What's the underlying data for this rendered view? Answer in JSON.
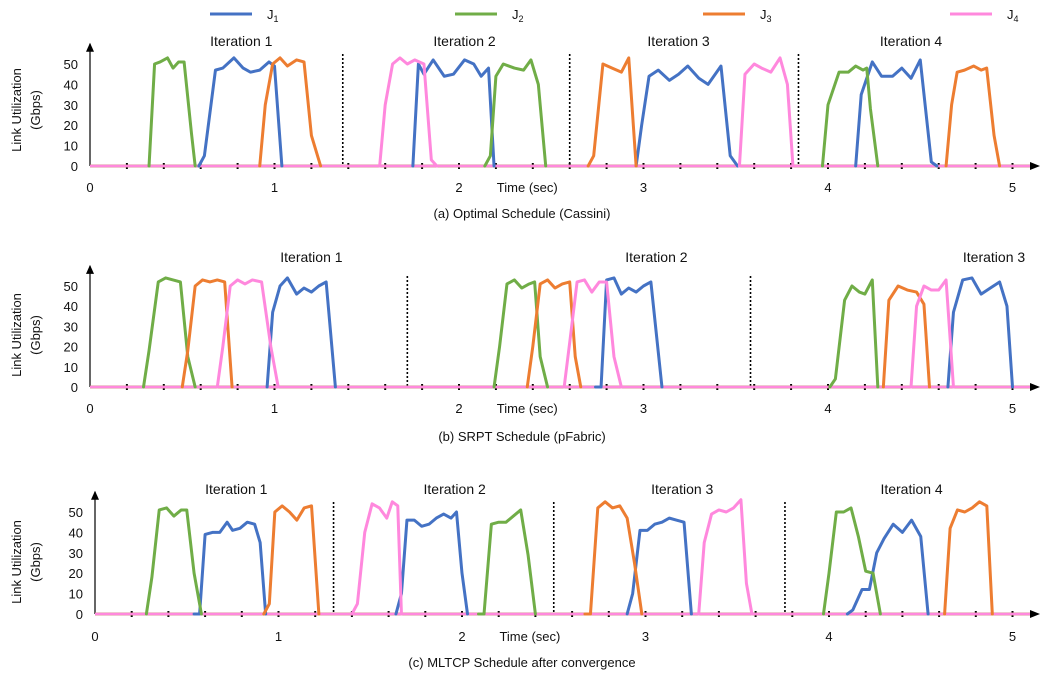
{
  "legend": [
    {
      "label": "J",
      "sub": "1",
      "color": "#4472C4"
    },
    {
      "label": "J",
      "sub": "2",
      "color": "#70AD47"
    },
    {
      "label": "J",
      "sub": "3",
      "color": "#ED7D31"
    },
    {
      "label": "J",
      "sub": "4",
      "color": "#FF88DD"
    }
  ],
  "chart_data": [
    {
      "type": "line",
      "caption": "(a) Optimal Schedule (Cassini)",
      "ylabel_line1": "Link Utilization",
      "ylabel_line2": "(Gbps)",
      "xlabel": "Time (sec)",
      "xlim": [
        0,
        5.2
      ],
      "ylim": [
        0,
        55
      ],
      "xticks": [
        0,
        1,
        2,
        3,
        4,
        5
      ],
      "yticks": [
        0,
        10,
        20,
        30,
        40,
        50
      ],
      "separators": [
        1.37,
        2.6,
        3.84
      ],
      "iteration_labels": [
        {
          "text": "Iteration 1",
          "x": 0.82
        },
        {
          "text": "Iteration 2",
          "x": 2.03
        },
        {
          "text": "Iteration 3",
          "x": 3.19
        },
        {
          "text": "Iteration 4",
          "x": 4.45
        }
      ],
      "series": [
        {
          "name": "J1",
          "bursts": [
            {
              "x": [
                0.62,
                0.68,
                0.72,
                0.78,
                0.83,
                0.87,
                0.92,
                0.97,
                1.0,
                1.04
              ],
              "y": [
                5,
                47,
                48,
                53,
                48,
                46,
                47,
                51,
                49,
                0
              ]
            },
            {
              "x": [
                1.78,
                1.81,
                1.86,
                1.92,
                1.97,
                2.03,
                2.08,
                2.12,
                2.16
              ],
              "y": [
                50,
                45,
                52,
                44,
                45,
                52,
                50,
                44,
                48
              ]
            },
            {
              "x": [
                2.99,
                3.03,
                3.08,
                3.14,
                3.19,
                3.24,
                3.3,
                3.35,
                3.42,
                3.47,
                3.51
              ],
              "y": [
                20,
                44,
                47,
                42,
                45,
                49,
                43,
                40,
                49,
                5,
                0
              ]
            },
            {
              "x": [
                4.18,
                4.24,
                4.29,
                4.35,
                4.4,
                4.45,
                4.5,
                4.56,
                4.59
              ],
              "y": [
                35,
                51,
                44,
                44,
                48,
                43,
                52,
                2,
                0
              ]
            }
          ]
        },
        {
          "name": "J2",
          "bursts": [
            {
              "x": [
                0.35,
                0.38,
                0.42,
                0.45,
                0.48,
                0.51,
                0.55,
                0.57
              ],
              "y": [
                50,
                51,
                53,
                48,
                51,
                51,
                16,
                0
              ]
            },
            {
              "x": [
                2.17,
                2.2,
                2.24,
                2.3,
                2.35,
                2.39,
                2.43,
                2.47
              ],
              "y": [
                5,
                44,
                50,
                48,
                47,
                52,
                40,
                0
              ]
            },
            {
              "x": [
                4.0,
                4.06,
                4.11,
                4.15,
                4.19,
                4.21,
                4.23,
                4.27
              ],
              "y": [
                30,
                46,
                46,
                49,
                47,
                48,
                28,
                0
              ]
            }
          ]
        },
        {
          "name": "J3",
          "bursts": [
            {
              "x": [
                0.95,
                0.99,
                1.03,
                1.07,
                1.12,
                1.16,
                1.2,
                1.25
              ],
              "y": [
                30,
                50,
                53,
                49,
                52,
                51,
                15,
                0
              ]
            },
            {
              "x": [
                2.73,
                2.78,
                2.83,
                2.88,
                2.92,
                2.96
              ],
              "y": [
                5,
                50,
                48,
                46,
                53,
                0
              ]
            },
            {
              "x": [
                4.67,
                4.7,
                4.74,
                4.79,
                4.83,
                4.86,
                4.9
              ],
              "y": [
                30,
                46,
                47,
                49,
                47,
                48,
                15
              ]
            }
          ]
        },
        {
          "name": "J4",
          "bursts": [
            {
              "x": [
                1.6,
                1.64,
                1.68,
                1.72,
                1.76,
                1.81,
                1.85,
                1.88
              ],
              "y": [
                30,
                50,
                53,
                50,
                52,
                50,
                3,
                0
              ]
            },
            {
              "x": [
                3.55,
                3.6,
                3.64,
                3.69,
                3.74,
                3.78
              ],
              "y": [
                45,
                50,
                48,
                46,
                53,
                40
              ]
            }
          ]
        }
      ]
    },
    {
      "type": "line",
      "caption": "(b) SRPT Schedule (pFabric)",
      "ylabel_line1": "Link Utilization",
      "ylabel_line2": "(Gbps)",
      "xlabel": "Time (sec)",
      "xlim": [
        0,
        5.2
      ],
      "ylim": [
        0,
        55
      ],
      "xticks": [
        0,
        1,
        2,
        3,
        4,
        5
      ],
      "yticks": [
        0,
        10,
        20,
        30,
        40,
        50
      ],
      "separators": [
        1.72,
        3.58
      ],
      "iteration_labels": [
        {
          "text": "Iteration 1",
          "x": 1.2
        },
        {
          "text": "Iteration 2",
          "x": 3.07
        },
        {
          "text": "Iteration 3",
          "x": 4.9
        }
      ],
      "series": [
        {
          "name": "J1",
          "bursts": [
            {
              "x": [
                0.99,
                1.03,
                1.07,
                1.12,
                1.16,
                1.2,
                1.24,
                1.28,
                1.33
              ],
              "y": [
                37,
                50,
                54,
                46,
                49,
                47,
                50,
                52,
                0
              ]
            },
            {
              "x": [
                2.77,
                2.8,
                2.84,
                2.88,
                2.92,
                2.96,
                3.0,
                3.04,
                3.1
              ],
              "y": [
                0,
                53,
                54,
                46,
                49,
                47,
                50,
                52,
                0
              ]
            },
            {
              "x": [
                4.68,
                4.73,
                4.78,
                4.83,
                4.88,
                4.93,
                4.97,
                5.0
              ],
              "y": [
                37,
                53,
                54,
                46,
                49,
                52,
                40,
                0
              ]
            }
          ]
        },
        {
          "name": "J2",
          "bursts": [
            {
              "x": [
                0.32,
                0.37,
                0.41,
                0.45,
                0.49,
                0.53,
                0.57
              ],
              "y": [
                18,
                52,
                54,
                53,
                52,
                15,
                0
              ]
            },
            {
              "x": [
                2.22,
                2.26,
                2.3,
                2.34,
                2.38,
                2.41,
                2.44,
                2.48
              ],
              "y": [
                20,
                51,
                53,
                49,
                51,
                52,
                15,
                0
              ]
            },
            {
              "x": [
                4.04,
                4.09,
                4.13,
                4.17,
                4.2,
                4.24,
                4.27
              ],
              "y": [
                4,
                43,
                50,
                47,
                46,
                53,
                0
              ]
            }
          ]
        },
        {
          "name": "J3",
          "bursts": [
            {
              "x": [
                0.53,
                0.57,
                0.61,
                0.65,
                0.69,
                0.73,
                0.77
              ],
              "y": [
                18,
                50,
                53,
                52,
                53,
                52,
                0
              ]
            },
            {
              "x": [
                2.4,
                2.44,
                2.48,
                2.52,
                2.56,
                2.6,
                2.63
              ],
              "y": [
                20,
                51,
                53,
                49,
                51,
                52,
                15
              ]
            },
            {
              "x": [
                4.33,
                4.38,
                4.43,
                4.48,
                4.52
              ],
              "y": [
                43,
                50,
                48,
                47,
                41
              ]
            }
          ]
        },
        {
          "name": "J4",
          "bursts": [
            {
              "x": [
                0.72,
                0.76,
                0.8,
                0.84,
                0.88,
                0.93,
                0.98,
                1.02
              ],
              "y": [
                20,
                50,
                53,
                51,
                53,
                52,
                20,
                0
              ]
            },
            {
              "x": [
                2.6,
                2.64,
                2.68,
                2.72,
                2.76,
                2.8,
                2.84,
                2.88
              ],
              "y": [
                22,
                52,
                53,
                47,
                52,
                52,
                15,
                0
              ]
            },
            {
              "x": [
                4.48,
                4.52,
                4.56,
                4.6,
                4.64,
                4.68
              ],
              "y": [
                40,
                50,
                48,
                48,
                53,
                0
              ]
            }
          ]
        }
      ]
    },
    {
      "type": "line",
      "caption": "(c) MLTCP Schedule after convergence",
      "ylabel_line1": "Link Utilization",
      "ylabel_line2": "(Gbps)",
      "xlabel": "Time (sec)",
      "xlim": [
        0,
        5.2
      ],
      "ylim": [
        0,
        55
      ],
      "xticks": [
        0,
        1,
        2,
        3,
        4,
        5
      ],
      "yticks": [
        0,
        10,
        20,
        30,
        40,
        50
      ],
      "separators": [
        1.3,
        2.5,
        3.76
      ],
      "iteration_labels": [
        {
          "text": "Iteration 1",
          "x": 0.77
        },
        {
          "text": "Iteration 2",
          "x": 1.96
        },
        {
          "text": "Iteration 3",
          "x": 3.2
        },
        {
          "text": "Iteration 4",
          "x": 4.45
        }
      ],
      "series": [
        {
          "name": "J1",
          "bursts": [
            {
              "x": [
                0.57,
                0.6,
                0.64,
                0.68,
                0.72,
                0.75,
                0.79,
                0.83,
                0.87,
                0.9,
                0.93
              ],
              "y": [
                0,
                39,
                40,
                40,
                45,
                41,
                42,
                45,
                44,
                35,
                0
              ]
            },
            {
              "x": [
                1.67,
                1.7,
                1.74,
                1.78,
                1.82,
                1.86,
                1.9,
                1.94,
                1.97,
                2.0,
                2.03
              ],
              "y": [
                10,
                46,
                46,
                43,
                44,
                47,
                49,
                47,
                50,
                20,
                0
              ]
            },
            {
              "x": [
                2.93,
                2.97,
                3.01,
                3.05,
                3.09,
                3.13,
                3.17,
                3.21,
                3.25
              ],
              "y": [
                10,
                41,
                41,
                44,
                45,
                47,
                46,
                45,
                0
              ]
            },
            {
              "x": [
                4.13,
                4.18,
                4.22,
                4.26,
                4.3,
                4.35,
                4.4,
                4.45,
                4.5,
                4.54
              ],
              "y": [
                2,
                12,
                12,
                30,
                37,
                44,
                40,
                46,
                38,
                0
              ]
            }
          ]
        },
        {
          "name": "J2",
          "bursts": [
            {
              "x": [
                0.31,
                0.35,
                0.39,
                0.43,
                0.47,
                0.5,
                0.54,
                0.58
              ],
              "y": [
                18,
                51,
                52,
                48,
                51,
                51,
                20,
                0
              ]
            },
            {
              "x": [
                2.12,
                2.16,
                2.2,
                2.24,
                2.28,
                2.32,
                2.36,
                2.4
              ],
              "y": [
                0,
                44,
                45,
                45,
                48,
                51,
                29,
                0
              ]
            },
            {
              "x": [
                4.0,
                4.04,
                4.08,
                4.12,
                4.16,
                4.2,
                4.24,
                4.28
              ],
              "y": [
                20,
                50,
                50,
                52,
                38,
                21,
                20,
                0
              ]
            }
          ]
        },
        {
          "name": "J3",
          "bursts": [
            {
              "x": [
                0.95,
                0.98,
                1.02,
                1.06,
                1.1,
                1.14,
                1.18,
                1.22
              ],
              "y": [
                5,
                50,
                53,
                50,
                46,
                52,
                53,
                0
              ]
            },
            {
              "x": [
                2.7,
                2.74,
                2.78,
                2.82,
                2.86,
                2.9,
                2.94,
                2.98
              ],
              "y": [
                0,
                52,
                55,
                52,
                53,
                47,
                25,
                0
              ]
            },
            {
              "x": [
                4.66,
                4.7,
                4.74,
                4.78,
                4.82,
                4.86,
                4.89
              ],
              "y": [
                42,
                51,
                50,
                52,
                55,
                53,
                0
              ]
            }
          ]
        },
        {
          "name": "J4",
          "bursts": [
            {
              "x": [
                1.43,
                1.47,
                1.51,
                1.55,
                1.59,
                1.62,
                1.65,
                1.67
              ],
              "y": [
                5,
                40,
                54,
                52,
                47,
                55,
                53,
                0
              ]
            },
            {
              "x": [
                3.32,
                3.36,
                3.4,
                3.44,
                3.48,
                3.52,
                3.55,
                3.58
              ],
              "y": [
                35,
                49,
                51,
                50,
                52,
                56,
                15,
                0
              ]
            }
          ]
        }
      ]
    }
  ]
}
